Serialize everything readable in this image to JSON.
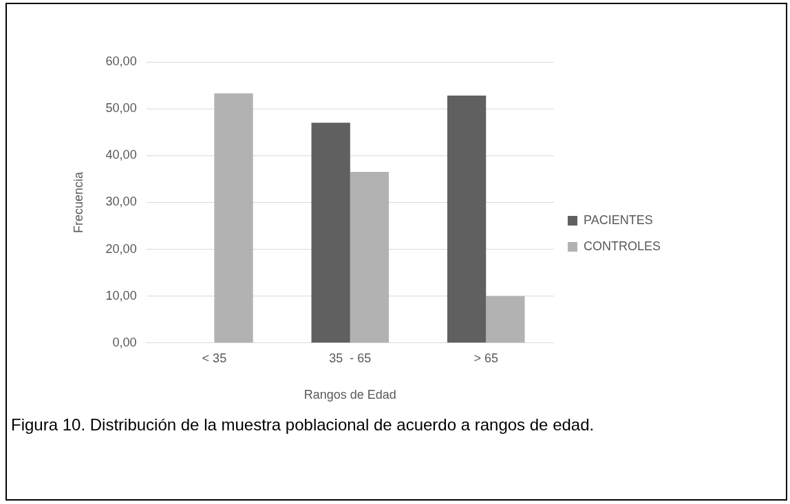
{
  "chart_data": {
    "type": "bar",
    "xlabel": "Rangos de Edad",
    "ylabel": "Frecuencia",
    "categories": [
      "< 35",
      "35  - 65",
      "> 65"
    ],
    "series": [
      {
        "name": "PACIENTES",
        "color": "#606060",
        "values": [
          0,
          47.0,
          52.8
        ]
      },
      {
        "name": "CONTROLES",
        "color": "#b2b2b2",
        "values": [
          53.3,
          36.5,
          10.0
        ]
      }
    ],
    "ylim": [
      0,
      60
    ],
    "yticks": [
      {
        "value": 0,
        "label": "0,00"
      },
      {
        "value": 10,
        "label": "10,00"
      },
      {
        "value": 20,
        "label": "20,00"
      },
      {
        "value": 30,
        "label": "30,00"
      },
      {
        "value": 40,
        "label": "40,00"
      },
      {
        "value": 50,
        "label": "50,00"
      },
      {
        "value": 60,
        "label": "60,00"
      }
    ],
    "grid": "y",
    "legend": "right",
    "annotations": [
      "Figura 10. Distribución de la muestra poblacional de acuerdo a rangos de edad."
    ]
  }
}
